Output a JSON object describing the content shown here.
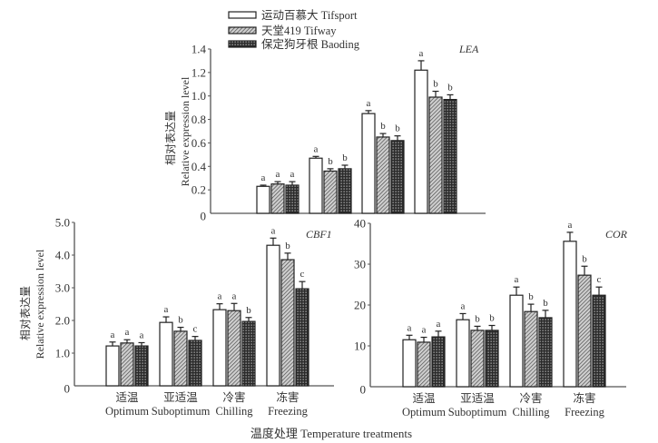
{
  "legend": [
    {
      "label": "运动百慕大 Tifsport",
      "pattern": "white"
    },
    {
      "label": "天堂419 Tifway",
      "pattern": "hatch"
    },
    {
      "label": "保定狗牙根 Baoding",
      "pattern": "dots"
    }
  ],
  "xlabel": "温度处理 Temperature treatments",
  "categories_cn": [
    "适温",
    "亚适温",
    "冷害",
    "冻害"
  ],
  "categories_en": [
    "Optimum",
    "Suboptimum",
    "Chilling",
    "Freezing"
  ],
  "ylabel_cn": "相对表达量",
  "ylabel_en": "Relative expression level",
  "colors": {
    "axis": "#555555",
    "bar_stroke": "#222222",
    "hatch": "#888888",
    "dots": "#333333"
  },
  "chart_data": [
    {
      "type": "bar",
      "title": "LEA",
      "ylim": [
        0,
        1.4
      ],
      "yticks": [
        "0",
        "0.2",
        "0.4",
        "0.6",
        "0.8",
        "1.0",
        "1.2",
        "1.4"
      ],
      "ytick_values": [
        0,
        0.2,
        0.4,
        0.6,
        0.8,
        1.0,
        1.2,
        1.4
      ],
      "show_xlabels": false,
      "series": [
        {
          "name": "运动百慕大 Tifsport",
          "values": [
            0.23,
            0.47,
            0.85,
            1.22
          ],
          "errors": [
            0.01,
            0.015,
            0.025,
            0.08
          ],
          "letters": [
            "a",
            "a",
            "a",
            "a"
          ]
        },
        {
          "name": "天堂419 Tifway",
          "values": [
            0.25,
            0.36,
            0.65,
            0.99
          ],
          "errors": [
            0.02,
            0.02,
            0.03,
            0.05
          ],
          "letters": [
            "a",
            "b",
            "b",
            "b"
          ]
        },
        {
          "name": "保定狗牙根 Baoding",
          "values": [
            0.24,
            0.38,
            0.62,
            0.97
          ],
          "errors": [
            0.03,
            0.03,
            0.04,
            0.04
          ],
          "letters": [
            "a",
            "b",
            "b",
            "b"
          ]
        }
      ]
    },
    {
      "type": "bar",
      "title": "CBF1",
      "ylim": [
        0,
        5.0
      ],
      "yticks": [
        "0",
        "1.0",
        "2.0",
        "3.0",
        "4.0",
        "5.0"
      ],
      "ytick_values": [
        0,
        1,
        2,
        3,
        4,
        5
      ],
      "show_xlabels": true,
      "series": [
        {
          "name": "运动百慕大 Tifsport",
          "values": [
            1.22,
            1.94,
            2.33,
            4.3
          ],
          "errors": [
            0.12,
            0.17,
            0.18,
            0.22
          ],
          "letters": [
            "a",
            "a",
            "a",
            "a"
          ]
        },
        {
          "name": "天堂419 Tifway",
          "values": [
            1.31,
            1.67,
            2.3,
            3.86
          ],
          "errors": [
            0.1,
            0.12,
            0.22,
            0.2
          ],
          "letters": [
            "a",
            "b",
            "a",
            "b"
          ]
        },
        {
          "name": "保定狗牙根 Baoding",
          "values": [
            1.22,
            1.39,
            1.97,
            2.97
          ],
          "errors": [
            0.1,
            0.12,
            0.12,
            0.22
          ],
          "letters": [
            "a",
            "c",
            "b",
            "c"
          ]
        }
      ]
    },
    {
      "type": "bar",
      "title": "COR",
      "ylim": [
        0,
        40
      ],
      "yticks": [
        "0",
        "10",
        "20",
        "30",
        "40"
      ],
      "ytick_values": [
        0,
        10,
        20,
        30,
        40
      ],
      "show_xlabels": true,
      "series": [
        {
          "name": "运动百慕大 Tifsport",
          "values": [
            11.5,
            16.4,
            22.4,
            35.6
          ],
          "errors": [
            1.1,
            1.5,
            2.0,
            2.2
          ],
          "letters": [
            "a",
            "a",
            "a",
            "a"
          ]
        },
        {
          "name": "天堂419 Tifway",
          "values": [
            10.9,
            13.8,
            18.4,
            27.3
          ],
          "errors": [
            1.2,
            1.0,
            1.8,
            2.2
          ],
          "letters": [
            "a",
            "b",
            "b",
            "b"
          ]
        },
        {
          "name": "保定狗牙根 Baoding",
          "values": [
            12.2,
            13.8,
            16.9,
            22.4
          ],
          "errors": [
            1.4,
            1.2,
            1.8,
            2.0
          ],
          "letters": [
            "a",
            "b",
            "b",
            "c"
          ]
        }
      ]
    }
  ]
}
